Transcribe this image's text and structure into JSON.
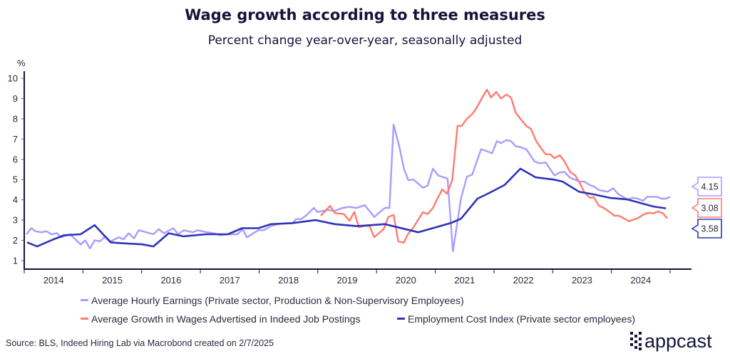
{
  "chart_data": {
    "type": "line",
    "title": "Wage growth according to three measures",
    "subtitle": "Percent change year-over-year, seasonally adjusted",
    "ylabel": "%",
    "xlabel": "",
    "ylim": [
      1,
      10
    ],
    "xlim": [
      2014,
      2025
    ],
    "yticks": [
      "1",
      "2",
      "3",
      "4",
      "5",
      "6",
      "7",
      "8",
      "9",
      "10"
    ],
    "xticks": [
      "2014",
      "2015",
      "2016",
      "2017",
      "2018",
      "2019",
      "2020",
      "2021",
      "2022",
      "2023",
      "2024"
    ],
    "grid": false,
    "legend_placement": "bottom",
    "series": [
      {
        "name": "Average Hourly Earnings (Private sector, Production & Non-Supervisory Employees)",
        "color": "#a99cff",
        "end_label": "4.15",
        "points": [
          [
            2014.04,
            2.3
          ],
          [
            2014.12,
            2.6
          ],
          [
            2014.19,
            2.45
          ],
          [
            2014.29,
            2.4
          ],
          [
            2014.38,
            2.45
          ],
          [
            2014.46,
            2.3
          ],
          [
            2014.56,
            2.35
          ],
          [
            2014.62,
            2.15
          ],
          [
            2014.78,
            2.3
          ],
          [
            2014.96,
            1.8
          ],
          [
            2015.04,
            2.0
          ],
          [
            2015.12,
            1.6
          ],
          [
            2015.2,
            2.0
          ],
          [
            2015.29,
            1.95
          ],
          [
            2015.38,
            2.2
          ],
          [
            2015.47,
            1.95
          ],
          [
            2015.61,
            2.15
          ],
          [
            2015.69,
            2.05
          ],
          [
            2015.78,
            2.35
          ],
          [
            2015.87,
            2.1
          ],
          [
            2015.95,
            2.5
          ],
          [
            2016.2,
            2.3
          ],
          [
            2016.29,
            2.55
          ],
          [
            2016.38,
            2.35
          ],
          [
            2016.54,
            2.6
          ],
          [
            2016.62,
            2.3
          ],
          [
            2016.72,
            2.5
          ],
          [
            2016.87,
            2.4
          ],
          [
            2016.95,
            2.5
          ],
          [
            2017.11,
            2.4
          ],
          [
            2017.23,
            2.35
          ],
          [
            2017.33,
            2.25
          ],
          [
            2017.47,
            2.3
          ],
          [
            2017.63,
            2.3
          ],
          [
            2017.72,
            2.55
          ],
          [
            2017.79,
            2.15
          ],
          [
            2017.9,
            2.35
          ],
          [
            2017.99,
            2.5
          ],
          [
            2018.08,
            2.5
          ],
          [
            2018.2,
            2.7
          ],
          [
            2018.32,
            2.8
          ],
          [
            2018.44,
            2.85
          ],
          [
            2018.57,
            2.85
          ],
          [
            2018.63,
            3.05
          ],
          [
            2018.72,
            3.05
          ],
          [
            2018.83,
            3.3
          ],
          [
            2018.93,
            3.6
          ],
          [
            2018.99,
            3.4
          ],
          [
            2019.17,
            3.5
          ],
          [
            2019.29,
            3.45
          ],
          [
            2019.42,
            3.6
          ],
          [
            2019.54,
            3.65
          ],
          [
            2019.66,
            3.6
          ],
          [
            2019.8,
            3.74
          ],
          [
            2019.96,
            3.15
          ],
          [
            2020.14,
            3.6
          ],
          [
            2020.22,
            3.6
          ],
          [
            2020.29,
            7.72
          ],
          [
            2020.39,
            6.6
          ],
          [
            2020.47,
            5.5
          ],
          [
            2020.54,
            4.97
          ],
          [
            2020.63,
            5.0
          ],
          [
            2020.79,
            4.6
          ],
          [
            2020.87,
            4.7
          ],
          [
            2020.96,
            5.54
          ],
          [
            2021.05,
            5.2
          ],
          [
            2021.21,
            5.05
          ],
          [
            2021.3,
            1.46
          ],
          [
            2021.44,
            4.1
          ],
          [
            2021.54,
            5.14
          ],
          [
            2021.63,
            5.25
          ],
          [
            2021.78,
            6.5
          ],
          [
            2021.88,
            6.4
          ],
          [
            2021.97,
            6.3
          ],
          [
            2022.05,
            6.9
          ],
          [
            2022.12,
            6.8
          ],
          [
            2022.21,
            6.95
          ],
          [
            2022.29,
            6.9
          ],
          [
            2022.37,
            6.65
          ],
          [
            2022.45,
            6.6
          ],
          [
            2022.55,
            6.5
          ],
          [
            2022.69,
            5.9
          ],
          [
            2022.78,
            5.8
          ],
          [
            2022.88,
            5.85
          ],
          [
            2023.03,
            5.2
          ],
          [
            2023.12,
            5.35
          ],
          [
            2023.2,
            5.38
          ],
          [
            2023.3,
            5.08
          ],
          [
            2023.46,
            4.9
          ],
          [
            2023.54,
            4.9
          ],
          [
            2023.63,
            4.73
          ],
          [
            2023.7,
            4.66
          ],
          [
            2023.79,
            4.48
          ],
          [
            2023.94,
            4.4
          ],
          [
            2024.03,
            4.58
          ],
          [
            2024.11,
            4.3
          ],
          [
            2024.27,
            4.02
          ],
          [
            2024.37,
            4.1
          ],
          [
            2024.45,
            4.06
          ],
          [
            2024.54,
            3.95
          ],
          [
            2024.61,
            4.15
          ],
          [
            2024.78,
            4.15
          ],
          [
            2024.85,
            4.06
          ],
          [
            2024.93,
            4.06
          ],
          [
            2025.0,
            4.15
          ]
        ]
      },
      {
        "name": "Average Growth in Wages Advertised in Indeed Job Postings",
        "color": "#ff7b6e",
        "end_label": "3.08",
        "points": [
          [
            2019.05,
            3.22
          ],
          [
            2019.21,
            3.7
          ],
          [
            2019.29,
            3.35
          ],
          [
            2019.44,
            3.3
          ],
          [
            2019.54,
            2.97
          ],
          [
            2019.62,
            3.4
          ],
          [
            2019.7,
            2.65
          ],
          [
            2019.81,
            2.72
          ],
          [
            2019.88,
            2.7
          ],
          [
            2019.96,
            2.16
          ],
          [
            2020.12,
            2.55
          ],
          [
            2020.2,
            3.15
          ],
          [
            2020.29,
            3.26
          ],
          [
            2020.37,
            1.95
          ],
          [
            2020.46,
            1.88
          ],
          [
            2020.54,
            2.33
          ],
          [
            2020.63,
            2.65
          ],
          [
            2020.79,
            3.39
          ],
          [
            2020.87,
            3.3
          ],
          [
            2020.96,
            3.6
          ],
          [
            2021.03,
            4.02
          ],
          [
            2021.12,
            4.52
          ],
          [
            2021.2,
            4.3
          ],
          [
            2021.29,
            4.97
          ],
          [
            2021.38,
            7.65
          ],
          [
            2021.45,
            7.65
          ],
          [
            2021.54,
            8.0
          ],
          [
            2021.63,
            8.24
          ],
          [
            2021.7,
            8.52
          ],
          [
            2021.8,
            9.05
          ],
          [
            2021.88,
            9.44
          ],
          [
            2021.95,
            9.05
          ],
          [
            2022.04,
            9.33
          ],
          [
            2022.12,
            9.0
          ],
          [
            2022.21,
            9.2
          ],
          [
            2022.29,
            9.05
          ],
          [
            2022.37,
            8.3
          ],
          [
            2022.45,
            8.0
          ],
          [
            2022.55,
            7.65
          ],
          [
            2022.63,
            7.5
          ],
          [
            2022.72,
            6.9
          ],
          [
            2022.79,
            6.6
          ],
          [
            2022.88,
            6.25
          ],
          [
            2022.96,
            6.25
          ],
          [
            2023.03,
            6.06
          ],
          [
            2023.12,
            6.2
          ],
          [
            2023.2,
            5.9
          ],
          [
            2023.3,
            5.36
          ],
          [
            2023.38,
            5.22
          ],
          [
            2023.46,
            4.83
          ],
          [
            2023.54,
            4.37
          ],
          [
            2023.63,
            4.1
          ],
          [
            2023.7,
            4.13
          ],
          [
            2023.79,
            3.7
          ],
          [
            2023.87,
            3.6
          ],
          [
            2023.97,
            3.4
          ],
          [
            2024.05,
            3.22
          ],
          [
            2024.13,
            3.22
          ],
          [
            2024.3,
            2.94
          ],
          [
            2024.45,
            3.1
          ],
          [
            2024.55,
            3.28
          ],
          [
            2024.63,
            3.36
          ],
          [
            2024.72,
            3.33
          ],
          [
            2024.79,
            3.43
          ],
          [
            2024.88,
            3.33
          ],
          [
            2024.95,
            3.08
          ]
        ]
      },
      {
        "name": "Employment Cost Index (Private sector employees)",
        "color": "#2f33b8",
        "end_label": "3.58",
        "points": [
          [
            2014.05,
            1.9
          ],
          [
            2014.22,
            1.7
          ],
          [
            2014.5,
            2.05
          ],
          [
            2014.68,
            2.25
          ],
          [
            2014.96,
            2.3
          ],
          [
            2015.2,
            2.75
          ],
          [
            2015.47,
            1.9
          ],
          [
            2015.71,
            1.85
          ],
          [
            2016.01,
            1.8
          ],
          [
            2016.2,
            1.7
          ],
          [
            2016.46,
            2.35
          ],
          [
            2016.71,
            2.2
          ],
          [
            2017.1,
            2.3
          ],
          [
            2017.47,
            2.3
          ],
          [
            2017.71,
            2.6
          ],
          [
            2017.99,
            2.6
          ],
          [
            2018.2,
            2.8
          ],
          [
            2018.56,
            2.85
          ],
          [
            2018.96,
            3.0
          ],
          [
            2019.29,
            2.8
          ],
          [
            2019.66,
            2.7
          ],
          [
            2020.14,
            2.8
          ],
          [
            2020.71,
            2.4
          ],
          [
            2021.27,
            2.86
          ],
          [
            2021.44,
            3.07
          ],
          [
            2021.72,
            4.06
          ],
          [
            2021.92,
            4.34
          ],
          [
            2022.18,
            4.73
          ],
          [
            2022.45,
            5.54
          ],
          [
            2022.71,
            5.11
          ],
          [
            2023.02,
            5.0
          ],
          [
            2023.17,
            4.9
          ],
          [
            2023.45,
            4.4
          ],
          [
            2023.7,
            4.27
          ],
          [
            2023.99,
            4.09
          ],
          [
            2024.27,
            4.02
          ],
          [
            2024.72,
            3.67
          ],
          [
            2024.93,
            3.58
          ]
        ]
      }
    ]
  },
  "legend": {
    "items": [
      "Average Hourly Earnings (Private sector, Production & Non-Supervisory Employees)",
      "Average Growth in Wages Advertised in Indeed Job Postings",
      "Employment Cost Index (Private sector employees)"
    ]
  },
  "source": "Source: BLS, Indeed Hiring Lab via Macrobond created on 2/7/2025",
  "logo": {
    "text": "appcast",
    "icon": "appcast-logo-icon"
  }
}
